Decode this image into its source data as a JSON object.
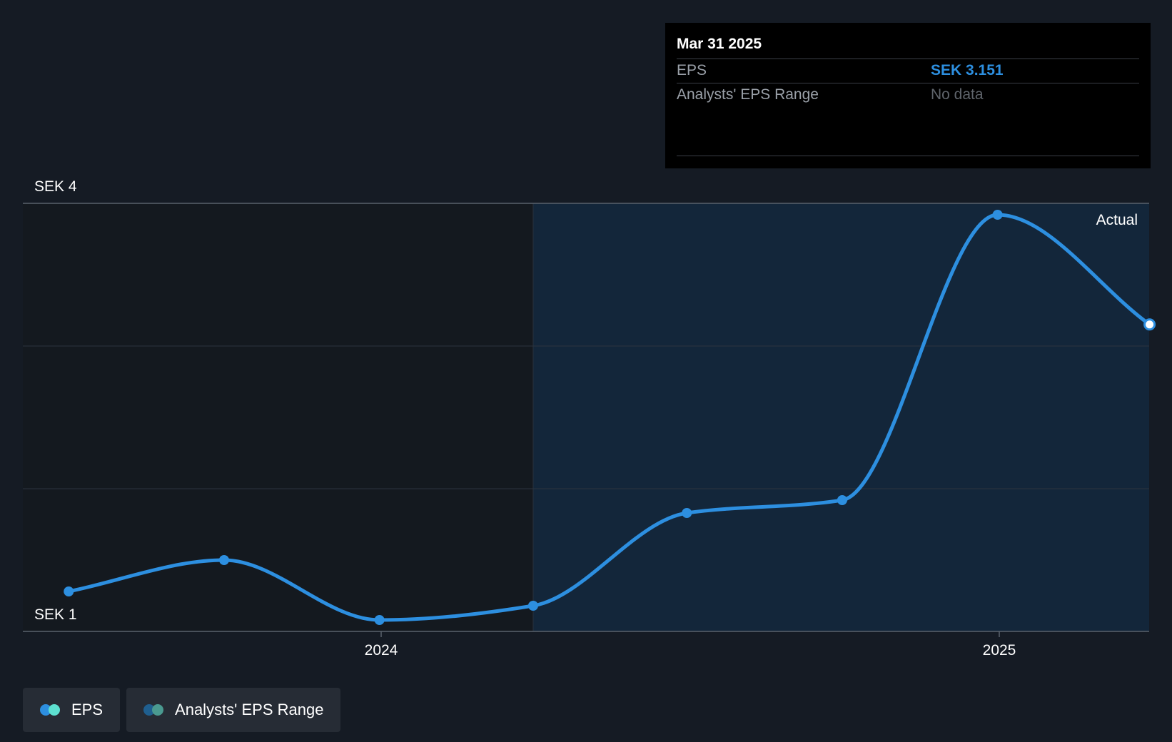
{
  "chart_data": {
    "type": "line",
    "x_dates": [
      "2023-06-30",
      "2023-09-30",
      "2023-12-31",
      "2024-03-31",
      "2024-06-30",
      "2024-09-30",
      "2024-12-31",
      "2025-03-31"
    ],
    "series": [
      {
        "name": "EPS",
        "values": [
          1.28,
          1.5,
          1.08,
          1.18,
          1.83,
          1.92,
          3.92,
          3.151
        ]
      }
    ],
    "y_tick_labels": [
      "SEK 4",
      "SEK 1"
    ],
    "ylim": [
      1,
      4
    ],
    "x_tick_labels": [
      "2024",
      "2025"
    ],
    "x_tick_dates": [
      "2024-01-01",
      "2025-01-01"
    ],
    "forecast_region_start": "2024-03-31",
    "region_label": "Actual",
    "colors": {
      "line": "#2d8fe0",
      "forecast_bg": "#13263a",
      "past_bg": "#14191f"
    }
  },
  "tooltip": {
    "date": "Mar 31 2025",
    "rows": [
      {
        "label": "EPS",
        "value": "SEK 3.151"
      },
      {
        "label": "Analysts' EPS Range",
        "value": "No data"
      }
    ]
  },
  "legend": {
    "items": [
      {
        "label": "EPS",
        "colors": [
          "#2d8fe0",
          "#5de0d0"
        ]
      },
      {
        "label": "Analysts' EPS Range",
        "colors": [
          "#1f5f8f",
          "#4a9a90"
        ]
      }
    ]
  }
}
